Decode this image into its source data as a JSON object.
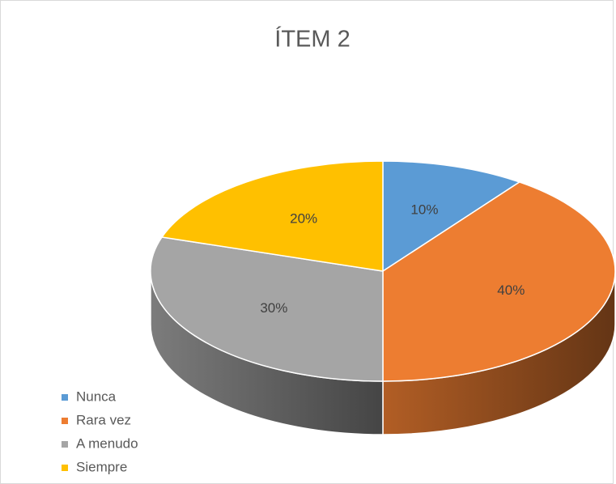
{
  "chart_data": {
    "type": "pie",
    "title": "ÍTEM 2",
    "categories": [
      "Nunca",
      "Rara vez",
      "A menudo",
      "Siempre"
    ],
    "values": [
      10,
      40,
      30,
      20
    ],
    "value_labels": [
      "10%",
      "40%",
      "30%",
      "20%"
    ],
    "colors": [
      "#5b9bd5",
      "#ed7d31",
      "#a5a5a5",
      "#ffc000"
    ],
    "legend": "bottom-left"
  }
}
